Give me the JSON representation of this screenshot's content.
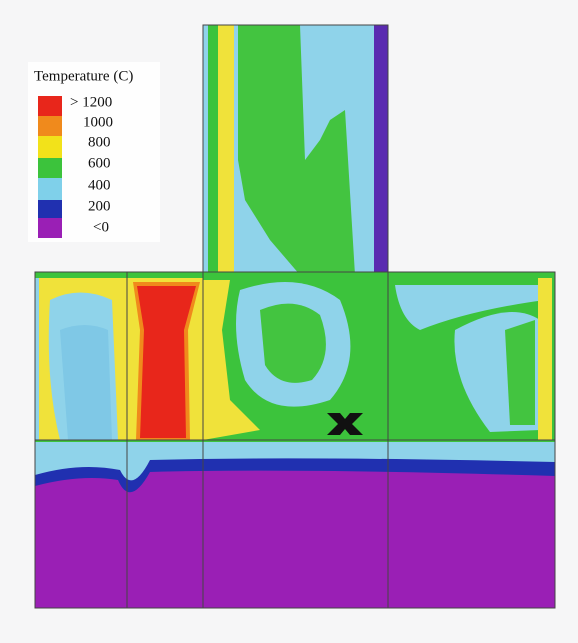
{
  "legend": {
    "title": "Temperature (C)",
    "labels": [
      "> 1200",
      "1000",
      "800",
      "600",
      "400",
      "200",
      "<0"
    ]
  }
}
